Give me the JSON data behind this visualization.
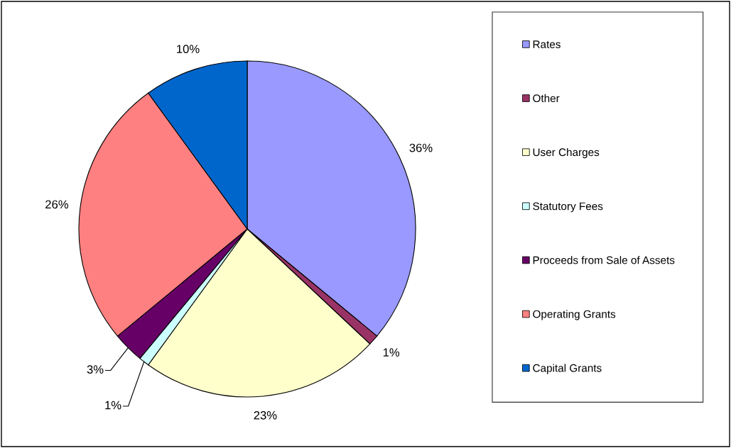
{
  "chart_data": {
    "type": "pie",
    "categories": [
      "Rates",
      "Other",
      "User Charges",
      "Statutory Fees",
      "Proceeds from Sale of Assets",
      "Operating Grants",
      "Capital Grants"
    ],
    "values": [
      36,
      1,
      23,
      1,
      3,
      26,
      10
    ],
    "colors": [
      "#9999ff",
      "#993366",
      "#ffffcc",
      "#ccffff",
      "#660066",
      "#ff8080",
      "#0066cc"
    ],
    "value_labels": [
      "36%",
      "1%",
      "23%",
      "1%",
      "3%",
      "26%",
      "10%"
    ],
    "legend": "right"
  }
}
